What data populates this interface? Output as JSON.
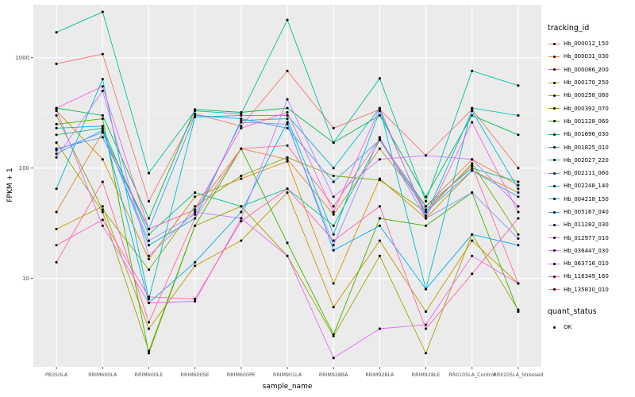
{
  "panel": {
    "bg": "#EBEBEB",
    "grid_major": "#FFFFFF",
    "grid_minor": "#F5F5F5",
    "tick_color": "#333333",
    "tick_label_color": "#4D4D4D",
    "point_color": "#111111"
  },
  "chart_data": {
    "type": "line",
    "title": "",
    "xlabel": "sample_name",
    "ylabel": "FPKM + 1",
    "y_scale": "log10",
    "y_ticks": [
      10,
      100,
      1000
    ],
    "y_minor": [
      3.162,
      31.62,
      316.2
    ],
    "ylim": [
      1.58,
      3020
    ],
    "grid": true,
    "legend_position": "right",
    "categories": [
      "PB350LA",
      "RRIM600LA",
      "RRIM600LE",
      "RRIM600SE",
      "RRIM600PE",
      "RRIM901LA",
      "RRIM928BA",
      "RRIM928LA",
      "RRIM928LE",
      "RRII105LA_Control",
      "RRII105LA_Stressed"
    ],
    "series": [
      {
        "name": "Hb_000012_150",
        "color": "#F8766D",
        "values": [
          880,
          1080,
          50,
          310,
          240,
          760,
          230,
          340,
          130,
          340,
          100
        ]
      },
      {
        "name": "Hb_000031_030",
        "color": "#EA8331",
        "values": [
          40,
          210,
          28,
          42,
          150,
          120,
          38,
          150,
          45,
          120,
          70
        ]
      },
      {
        "name": "Hb_000086_200",
        "color": "#D89000",
        "values": [
          330,
          120,
          15,
          55,
          80,
          115,
          9,
          80,
          35,
          95,
          60
        ]
      },
      {
        "name": "Hb_000170_250",
        "color": "#C09B00",
        "values": [
          28,
          45,
          3.5,
          13,
          22,
          60,
          5.5,
          22,
          5,
          22,
          9
        ]
      },
      {
        "name": "Hb_000258_080",
        "color": "#A3A500",
        "values": [
          170,
          40,
          2.2,
          30,
          45,
          16,
          3,
          16,
          2.1,
          25,
          5.2
        ]
      },
      {
        "name": "Hb_000392_070",
        "color": "#7CAE00",
        "values": [
          300,
          42,
          12,
          45,
          85,
          125,
          85,
          78,
          40,
          110,
          25
        ]
      },
      {
        "name": "Hb_001128_060",
        "color": "#39B600",
        "values": [
          250,
          280,
          2.1,
          30,
          150,
          21,
          3.1,
          35,
          30,
          60,
          5
        ]
      },
      {
        "name": "Hb_001696_030",
        "color": "#00BB4E",
        "values": [
          350,
          300,
          35,
          340,
          320,
          350,
          170,
          300,
          55,
          300,
          200
        ]
      },
      {
        "name": "Hb_001825_010",
        "color": "#00C087",
        "values": [
          200,
          230,
          25,
          60,
          45,
          65,
          30,
          180,
          45,
          100,
          75
        ]
      },
      {
        "name": "Hb_002027_220",
        "color": "#00C1A3",
        "values": [
          1700,
          2600,
          90,
          330,
          310,
          2200,
          170,
          650,
          50,
          760,
          560
        ]
      },
      {
        "name": "Hb_002111_060",
        "color": "#00BFC4",
        "values": [
          65,
          640,
          6.5,
          290,
          300,
          300,
          100,
          350,
          8,
          350,
          300
        ]
      },
      {
        "name": "Hb_002248_140",
        "color": "#00BADE",
        "values": [
          135,
          220,
          20,
          35,
          270,
          280,
          25,
          330,
          37,
          330,
          65
        ]
      },
      {
        "name": "Hb_004218_150",
        "color": "#00B0F6",
        "values": [
          230,
          240,
          6,
          14,
          40,
          260,
          18,
          30,
          8,
          25,
          20
        ]
      },
      {
        "name": "Hb_005167_040",
        "color": "#35A2FF",
        "values": [
          150,
          190,
          28,
          300,
          280,
          230,
          75,
          180,
          40,
          95,
          55
        ]
      },
      {
        "name": "Hb_011282_030",
        "color": "#9590FF",
        "values": [
          145,
          210,
          22,
          38,
          260,
          250,
          20,
          190,
          35,
          60,
          23
        ]
      },
      {
        "name": "Hb_012977_010",
        "color": "#C77CFF",
        "values": [
          125,
          500,
          16,
          40,
          35,
          420,
          55,
          120,
          130,
          120,
          45
        ]
      },
      {
        "name": "Hb_036447_030",
        "color": "#E76BF3",
        "values": [
          340,
          30,
          6,
          6.2,
          35,
          16,
          1.9,
          3.5,
          3.8,
          16,
          9
        ]
      },
      {
        "name": "Hb_063716_010",
        "color": "#FA62DB",
        "values": [
          350,
          550,
          28,
          42,
          230,
          320,
          40,
          350,
          35,
          260,
          40
        ]
      },
      {
        "name": "Hb_116349_160",
        "color": "#FF62BC",
        "values": [
          20,
          34,
          6.8,
          6.5,
          33,
          65,
          22,
          45,
          3.5,
          11,
          35
        ]
      },
      {
        "name": "Hb_135810_010",
        "color": "#FF6C91",
        "values": [
          14,
          75,
          4,
          35,
          150,
          160,
          45,
          185,
          42,
          105,
          9
        ]
      }
    ],
    "legend": {
      "tracking_title": "tracking_id",
      "quant_title": "quant_status",
      "quant_label": "OK"
    }
  }
}
